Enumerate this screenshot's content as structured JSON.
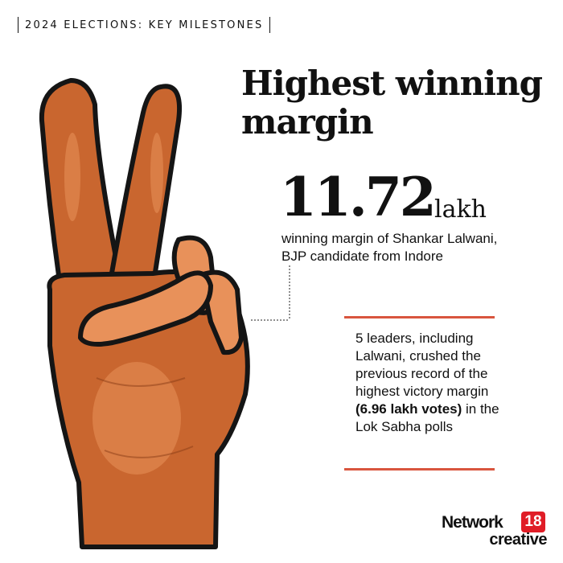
{
  "kicker": "2024 ELECTIONS: KEY MILESTONES",
  "title": "Highest winning margin",
  "stat": {
    "value": "11.72",
    "unit": "lakh",
    "description_line1": "winning margin of Shankar Lalwani,",
    "description_line2": "BJP candidate from Indore"
  },
  "record_note": {
    "before_bold": "5 leaders, including Lalwani, crushed the previous record of the highest victory margin ",
    "bold": "(6.96 lakh votes)",
    "after_bold": " in the Lok Sabha polls"
  },
  "branding": {
    "wordmark": "Network",
    "badge": "18",
    "sub": "creative"
  },
  "colors": {
    "accent": "#d9553e",
    "hand_fill": "#c9662f",
    "hand_highlight": "#e8915a",
    "badge_red": "#e01d27"
  },
  "illustration": "peace-sign-hand"
}
